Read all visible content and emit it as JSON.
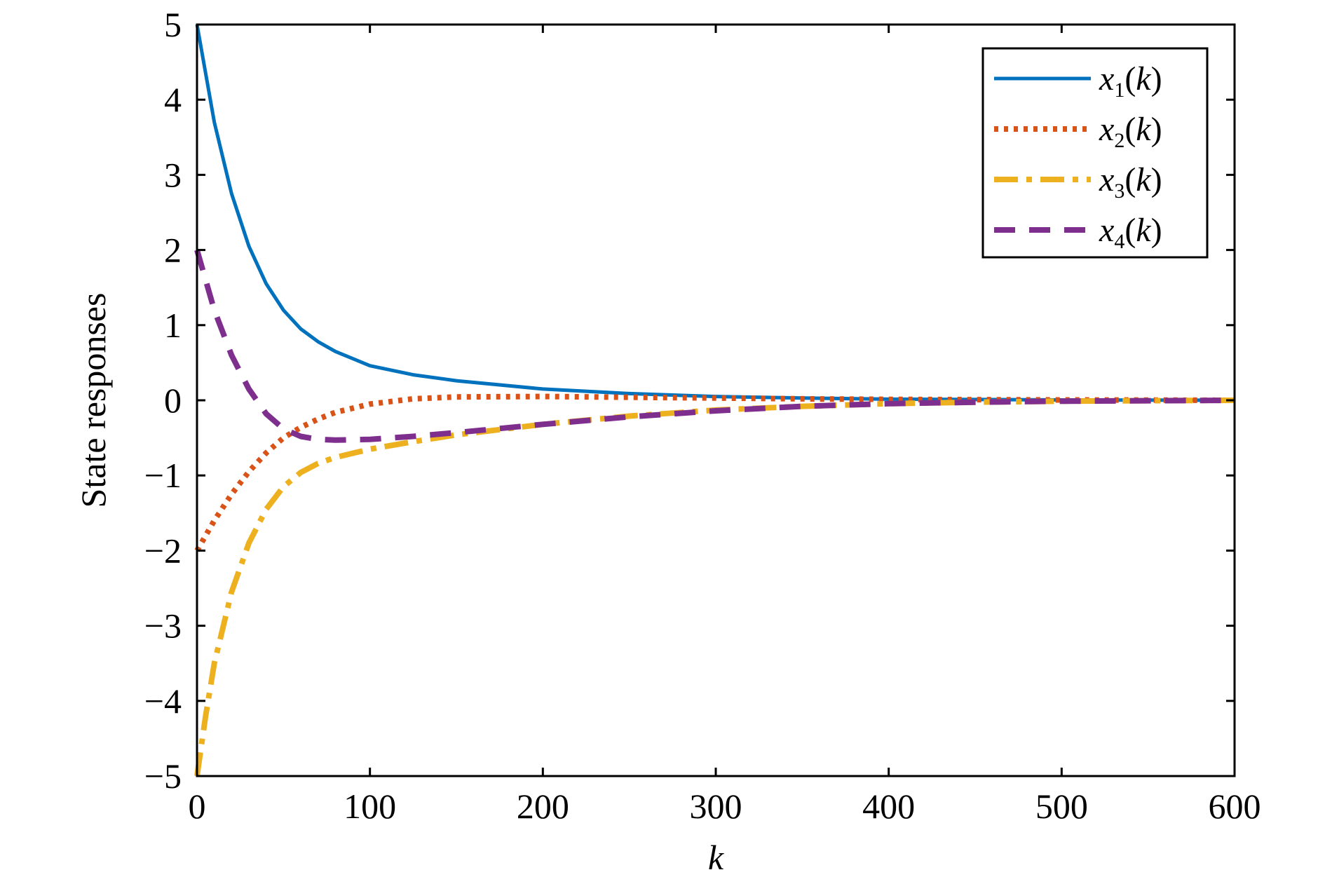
{
  "chart_data": {
    "type": "line",
    "title": "",
    "xlabel": "k",
    "ylabel": "State responses",
    "xlim": [
      0,
      600
    ],
    "ylim": [
      -5,
      5
    ],
    "xticks": [
      0,
      100,
      200,
      300,
      400,
      500,
      600
    ],
    "yticks": [
      5,
      4,
      3,
      2,
      1,
      0,
      -1,
      -2,
      -3,
      -4,
      -5
    ],
    "xtick_labels": [
      "0",
      "100",
      "200",
      "300",
      "400",
      "500",
      "600"
    ],
    "ytick_labels": [
      "5",
      "4",
      "3",
      "2",
      "1",
      "0",
      "−1",
      "−2",
      "−3",
      "−4",
      "−5"
    ],
    "grid": false,
    "legend_position": "top-right",
    "series": [
      {
        "name": "x1(k)",
        "legend": {
          "base": "x",
          "sub": "1",
          "arg": "k"
        },
        "color": "#0072BD",
        "style": "solid",
        "x": [
          0,
          10,
          20,
          30,
          40,
          50,
          60,
          70,
          80,
          100,
          125,
          150,
          200,
          250,
          300,
          350,
          400,
          450,
          500,
          550,
          600
        ],
        "y": [
          5.0,
          3.7,
          2.75,
          2.05,
          1.55,
          1.2,
          0.95,
          0.78,
          0.65,
          0.46,
          0.34,
          0.26,
          0.15,
          0.09,
          0.05,
          0.03,
          0.015,
          0.01,
          0.005,
          0.003,
          0.0
        ]
      },
      {
        "name": "x2(k)",
        "legend": {
          "base": "x",
          "sub": "2",
          "arg": "k"
        },
        "color": "#D95319",
        "style": "dotted",
        "x": [
          0,
          10,
          20,
          30,
          40,
          50,
          60,
          70,
          80,
          100,
          125,
          150,
          200,
          250,
          300,
          350,
          400,
          450,
          500,
          550,
          600
        ],
        "y": [
          -2.0,
          -1.6,
          -1.25,
          -0.95,
          -0.7,
          -0.5,
          -0.36,
          -0.25,
          -0.16,
          -0.05,
          0.02,
          0.045,
          0.05,
          0.04,
          0.03,
          0.02,
          0.012,
          0.008,
          0.005,
          0.003,
          0.0
        ]
      },
      {
        "name": "x3(k)",
        "legend": {
          "base": "x",
          "sub": "3",
          "arg": "k"
        },
        "color": "#EDB120",
        "style": "dashdot",
        "x": [
          0,
          5,
          10,
          20,
          30,
          40,
          50,
          60,
          70,
          80,
          100,
          125,
          150,
          200,
          250,
          300,
          350,
          400,
          450,
          500,
          550,
          600
        ],
        "y": [
          -5.0,
          -4.2,
          -3.5,
          -2.55,
          -1.9,
          -1.45,
          -1.15,
          -0.96,
          -0.84,
          -0.76,
          -0.65,
          -0.55,
          -0.46,
          -0.32,
          -0.21,
          -0.13,
          -0.08,
          -0.045,
          -0.025,
          -0.012,
          -0.006,
          0.0
        ]
      },
      {
        "name": "x4(k)",
        "legend": {
          "base": "x",
          "sub": "4",
          "arg": "k"
        },
        "color": "#7E2F8E",
        "style": "dashed",
        "x": [
          0,
          10,
          20,
          30,
          40,
          50,
          60,
          70,
          80,
          100,
          125,
          150,
          200,
          250,
          300,
          350,
          400,
          450,
          500,
          550,
          600
        ],
        "y": [
          2.0,
          1.2,
          0.6,
          0.15,
          -0.18,
          -0.38,
          -0.48,
          -0.52,
          -0.53,
          -0.52,
          -0.48,
          -0.43,
          -0.32,
          -0.22,
          -0.14,
          -0.08,
          -0.045,
          -0.025,
          -0.012,
          -0.006,
          0.0
        ]
      }
    ]
  }
}
